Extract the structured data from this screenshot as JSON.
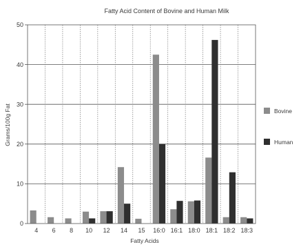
{
  "chart_data": {
    "type": "bar",
    "title": "Fatty Acid Content of Bovine and Human Milk",
    "xlabel": "Fatty Acids",
    "ylabel": "Grams/100g Fat",
    "ylim": [
      0,
      50
    ],
    "yticks": [
      0,
      10,
      20,
      30,
      40,
      50
    ],
    "grid": true,
    "legend_position": "right",
    "categories": [
      "4",
      "6",
      "8",
      "10",
      "12",
      "14",
      "15",
      "16:0",
      "16:1",
      "18:0",
      "18:1",
      "18:2",
      "18:3"
    ],
    "series": [
      {
        "name": "Bovine",
        "color": "#8c8c8c",
        "values": [
          3.3,
          1.6,
          1.3,
          3.0,
          3.1,
          14.2,
          1.2,
          42.5,
          3.6,
          5.6,
          16.6,
          1.6,
          1.6
        ]
      },
      {
        "name": "Human",
        "color": "#2f2f2f",
        "values": [
          0,
          0,
          0,
          1.3,
          3.1,
          5.0,
          0,
          20.0,
          5.7,
          5.8,
          46.2,
          12.9,
          1.3
        ]
      }
    ]
  }
}
